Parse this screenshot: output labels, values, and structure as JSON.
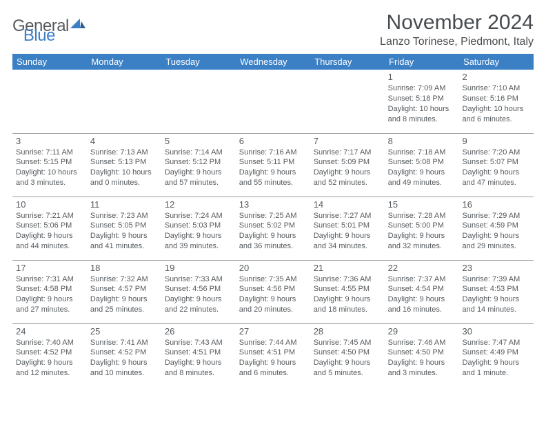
{
  "logo": {
    "text_gray": "General",
    "text_blue": "Blue",
    "icon_color": "#3b7fc4"
  },
  "title": "November 2024",
  "location": "Lanzo Torinese, Piedmont, Italy",
  "header_bg": "#3b7fc4",
  "header_fg": "#ffffff",
  "grid_line": "#9aa0a6",
  "text_color": "#555a5e",
  "days_of_week": [
    "Sunday",
    "Monday",
    "Tuesday",
    "Wednesday",
    "Thursday",
    "Friday",
    "Saturday"
  ],
  "weeks": [
    [
      null,
      null,
      null,
      null,
      null,
      {
        "n": "1",
        "sr": "7:09 AM",
        "ss": "5:18 PM",
        "dl": "10 hours and 8 minutes."
      },
      {
        "n": "2",
        "sr": "7:10 AM",
        "ss": "5:16 PM",
        "dl": "10 hours and 6 minutes."
      }
    ],
    [
      {
        "n": "3",
        "sr": "7:11 AM",
        "ss": "5:15 PM",
        "dl": "10 hours and 3 minutes."
      },
      {
        "n": "4",
        "sr": "7:13 AM",
        "ss": "5:13 PM",
        "dl": "10 hours and 0 minutes."
      },
      {
        "n": "5",
        "sr": "7:14 AM",
        "ss": "5:12 PM",
        "dl": "9 hours and 57 minutes."
      },
      {
        "n": "6",
        "sr": "7:16 AM",
        "ss": "5:11 PM",
        "dl": "9 hours and 55 minutes."
      },
      {
        "n": "7",
        "sr": "7:17 AM",
        "ss": "5:09 PM",
        "dl": "9 hours and 52 minutes."
      },
      {
        "n": "8",
        "sr": "7:18 AM",
        "ss": "5:08 PM",
        "dl": "9 hours and 49 minutes."
      },
      {
        "n": "9",
        "sr": "7:20 AM",
        "ss": "5:07 PM",
        "dl": "9 hours and 47 minutes."
      }
    ],
    [
      {
        "n": "10",
        "sr": "7:21 AM",
        "ss": "5:06 PM",
        "dl": "9 hours and 44 minutes."
      },
      {
        "n": "11",
        "sr": "7:23 AM",
        "ss": "5:05 PM",
        "dl": "9 hours and 41 minutes."
      },
      {
        "n": "12",
        "sr": "7:24 AM",
        "ss": "5:03 PM",
        "dl": "9 hours and 39 minutes."
      },
      {
        "n": "13",
        "sr": "7:25 AM",
        "ss": "5:02 PM",
        "dl": "9 hours and 36 minutes."
      },
      {
        "n": "14",
        "sr": "7:27 AM",
        "ss": "5:01 PM",
        "dl": "9 hours and 34 minutes."
      },
      {
        "n": "15",
        "sr": "7:28 AM",
        "ss": "5:00 PM",
        "dl": "9 hours and 32 minutes."
      },
      {
        "n": "16",
        "sr": "7:29 AM",
        "ss": "4:59 PM",
        "dl": "9 hours and 29 minutes."
      }
    ],
    [
      {
        "n": "17",
        "sr": "7:31 AM",
        "ss": "4:58 PM",
        "dl": "9 hours and 27 minutes."
      },
      {
        "n": "18",
        "sr": "7:32 AM",
        "ss": "4:57 PM",
        "dl": "9 hours and 25 minutes."
      },
      {
        "n": "19",
        "sr": "7:33 AM",
        "ss": "4:56 PM",
        "dl": "9 hours and 22 minutes."
      },
      {
        "n": "20",
        "sr": "7:35 AM",
        "ss": "4:56 PM",
        "dl": "9 hours and 20 minutes."
      },
      {
        "n": "21",
        "sr": "7:36 AM",
        "ss": "4:55 PM",
        "dl": "9 hours and 18 minutes."
      },
      {
        "n": "22",
        "sr": "7:37 AM",
        "ss": "4:54 PM",
        "dl": "9 hours and 16 minutes."
      },
      {
        "n": "23",
        "sr": "7:39 AM",
        "ss": "4:53 PM",
        "dl": "9 hours and 14 minutes."
      }
    ],
    [
      {
        "n": "24",
        "sr": "7:40 AM",
        "ss": "4:52 PM",
        "dl": "9 hours and 12 minutes."
      },
      {
        "n": "25",
        "sr": "7:41 AM",
        "ss": "4:52 PM",
        "dl": "9 hours and 10 minutes."
      },
      {
        "n": "26",
        "sr": "7:43 AM",
        "ss": "4:51 PM",
        "dl": "9 hours and 8 minutes."
      },
      {
        "n": "27",
        "sr": "7:44 AM",
        "ss": "4:51 PM",
        "dl": "9 hours and 6 minutes."
      },
      {
        "n": "28",
        "sr": "7:45 AM",
        "ss": "4:50 PM",
        "dl": "9 hours and 5 minutes."
      },
      {
        "n": "29",
        "sr": "7:46 AM",
        "ss": "4:50 PM",
        "dl": "9 hours and 3 minutes."
      },
      {
        "n": "30",
        "sr": "7:47 AM",
        "ss": "4:49 PM",
        "dl": "9 hours and 1 minute."
      }
    ]
  ],
  "labels": {
    "sunrise": "Sunrise:",
    "sunset": "Sunset:",
    "daylight": "Daylight:"
  }
}
